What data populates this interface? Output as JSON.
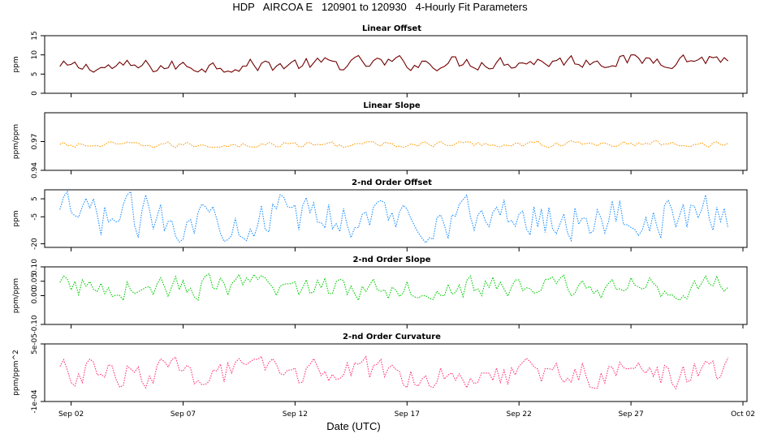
{
  "title": "HDP   AIRCOA E   120901 to 120930   4-Hourly Fit Parameters",
  "xlabel": "Date (UTC)",
  "x_ticks": [
    "Sep 02",
    "Sep 07",
    "Sep 12",
    "Sep 17",
    "Sep 22",
    "Sep 27",
    "Oct 02"
  ],
  "chart_data": [
    {
      "type": "line",
      "title": "Linear Offset",
      "ylabel": "ppm",
      "ylim": [
        0,
        15
      ],
      "yticks": [
        "0",
        "5",
        "10",
        "15"
      ],
      "color": "#8b0000",
      "x_range": [
        "2012-09-01 00:00",
        "2012-10-02 00:00"
      ],
      "series": [
        {
          "x_start": "2012-09-01 12:00",
          "step_hours": 4,
          "n": 180,
          "trend": [
            6.6,
            9.0
          ],
          "range": [
            5.5,
            10.0
          ]
        }
      ]
    },
    {
      "type": "line",
      "title": "Linear Slope",
      "ylabel": "ppm/ppm",
      "ylim": [
        0.94,
        1.0
      ],
      "yticks": [
        "0.94",
        "0.97"
      ],
      "color": "#ff9900",
      "series": [
        {
          "x_start": "2012-09-01 12:00",
          "step_hours": 4,
          "n": 180,
          "trend": [
            0.966,
            0.968
          ],
          "range": [
            0.963,
            0.971
          ]
        }
      ]
    },
    {
      "type": "line",
      "title": "2-nd Order Offset",
      "ylabel": "ppm",
      "ylim": [
        -22,
        10
      ],
      "yticks": [
        "-20",
        "-5",
        "5"
      ],
      "color": "#1e90ff",
      "series": [
        {
          "x_start": "2012-09-01 12:00",
          "step_hours": 4,
          "n": 180,
          "trend": [
            -5,
            -5
          ],
          "range": [
            -20,
            9
          ]
        }
      ]
    },
    {
      "type": "line",
      "title": "2-nd Order Slope",
      "ylabel": "ppm/ppm",
      "ylim": [
        -0.1,
        0.1
      ],
      "yticks": [
        "-0.10",
        "0.00",
        "0.05",
        "0.10"
      ],
      "color": "#00cc00",
      "series": [
        {
          "x_start": "2012-09-01 12:00",
          "step_hours": 4,
          "n": 180,
          "trend": [
            0.03,
            0.03
          ],
          "range": [
            -0.02,
            0.08
          ]
        }
      ]
    },
    {
      "type": "line",
      "title": "2-nd Order Curvature",
      "ylabel": "ppm/ppm^2",
      "ylim": [
        -0.0001,
        5e-05
      ],
      "yticks": [
        "-1e-04",
        "5e-05"
      ],
      "color": "#ff3377",
      "series": [
        {
          "x_start": "2012-09-01 12:00",
          "step_hours": 4,
          "n": 180,
          "trend": [
            -2.5e-05,
            -2.5e-05
          ],
          "range": [
            -7e-05,
            2e-05
          ]
        }
      ]
    }
  ]
}
